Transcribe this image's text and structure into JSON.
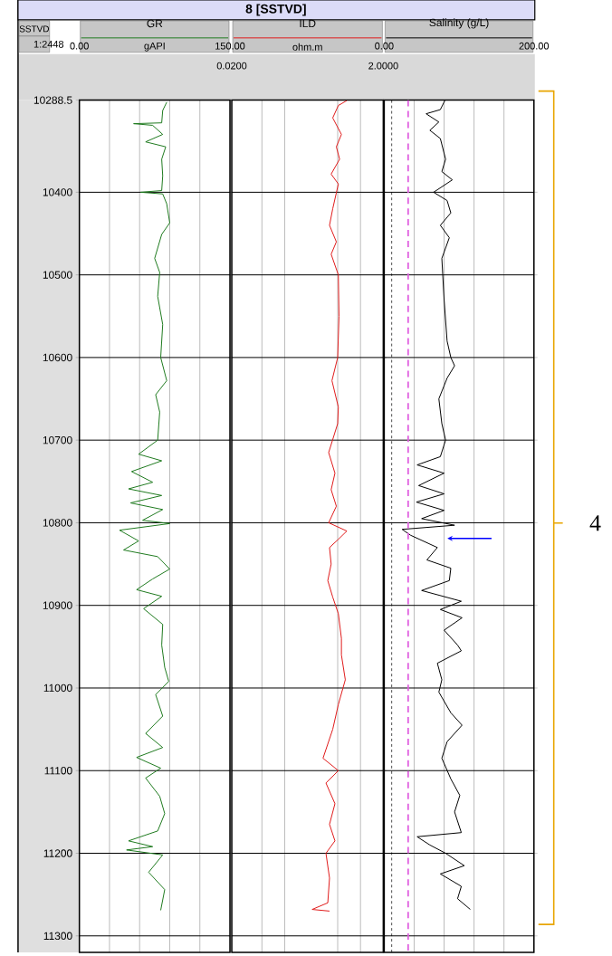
{
  "chart_data": [
    {
      "type": "line",
      "title": "GR",
      "xlabel": "gAPI",
      "ylabel": "SSTVD",
      "annotations": [
        "8 [SSTVD]",
        "1:2448"
      ],
      "xlim": [
        0,
        150
      ],
      "xticks": [
        {
          "value": 0,
          "label": "0.00"
        },
        {
          "value": 30,
          "label": null
        },
        {
          "value": 60,
          "label": null
        },
        {
          "value": 90,
          "label": null
        },
        {
          "value": 120,
          "label": null
        },
        {
          "value": 150,
          "label": "150.00"
        }
      ],
      "ylim": [
        11320,
        10288.5
      ],
      "yticks": [
        {
          "value": 10288.5,
          "label": "10288.5"
        },
        10400,
        10500,
        10600,
        10700,
        10800,
        10900,
        11000,
        11100,
        11200,
        11300
      ],
      "grid": true,
      "marker": "none",
      "line_style": "solid",
      "series": [
        {
          "color": "#1f7a1f",
          "x": [
            87,
            83,
            82,
            54,
            73,
            83,
            66,
            86,
            82,
            83,
            82,
            61,
            83,
            87,
            90,
            82,
            75,
            80,
            78,
            83,
            81,
            87,
            76,
            80,
            78,
            59,
            82,
            52,
            73,
            49,
            82,
            51,
            83,
            63,
            90,
            40,
            59,
            44,
            78,
            90,
            73,
            57,
            82,
            64,
            83,
            82,
            85,
            89,
            76,
            83,
            66,
            83,
            57,
            81,
            66,
            80,
            85,
            78,
            49,
            73,
            47,
            83,
            69,
            85,
            81
          ],
          "values": [
            10291,
            10301,
            10316,
            10317,
            10319,
            10330,
            10339,
            10345,
            10360,
            10380,
            10398,
            10400,
            10402,
            10414,
            10437,
            10451,
            10480,
            10497,
            10526,
            10560,
            10600,
            10628,
            10645,
            10666,
            10700,
            10717,
            10725,
            10738,
            10751,
            10759,
            10767,
            10776,
            10784,
            10797,
            10801,
            10809,
            10822,
            10833,
            10841,
            10856,
            10868,
            10881,
            10889,
            10904,
            10923,
            10948,
            10975,
            10992,
            11008,
            11034,
            11055,
            11072,
            11084,
            11097,
            11109,
            11131,
            11152,
            11173,
            11185,
            11192,
            11196,
            11202,
            11223,
            11244,
            11269
          ]
        }
      ]
    },
    {
      "type": "line",
      "title": "ILD",
      "xlabel": "ohm.m",
      "log": "x",
      "xlim": [
        0.02,
        2
      ],
      "xticks": [
        {
          "value": 0.02,
          "label": "0.0200"
        },
        {
          "value": 0.05,
          "label": null
        },
        {
          "value": 0.1,
          "label": null
        },
        {
          "value": 0.5,
          "label": null
        },
        {
          "value": 1,
          "label": null
        },
        {
          "value": 2,
          "label": "2.0000"
        }
      ],
      "ylim": [
        11320,
        10288.5
      ],
      "yticks": [
        10400,
        10500,
        10600,
        10700,
        10800,
        10900,
        11000,
        11100,
        11200,
        11300
      ],
      "tick_labels": "x",
      "grid": true,
      "marker": "none",
      "line_style": "solid",
      "series": [
        {
          "color": "#e01b1b",
          "x": [
            0.66,
            0.51,
            0.43,
            0.56,
            0.48,
            0.53,
            0.41,
            0.51,
            0.43,
            0.39,
            0.48,
            0.41,
            0.51,
            0.52,
            0.5,
            0.42,
            0.51,
            0.5,
            0.38,
            0.46,
            0.41,
            0.48,
            0.38,
            0.66,
            0.51,
            0.39,
            0.41,
            0.37,
            0.43,
            0.51,
            0.56,
            0.56,
            0.63,
            0.51,
            0.43,
            0.32,
            0.51,
            0.35,
            0.46,
            0.39,
            0.46,
            0.35,
            0.39,
            0.37,
            0.23,
            0.39
          ],
          "values": [
            10289,
            10295,
            10310,
            10330,
            10345,
            10360,
            10378,
            10390,
            10420,
            10440,
            10460,
            10475,
            10500,
            10550,
            10600,
            10628,
            10660,
            10680,
            10715,
            10740,
            10760,
            10780,
            10800,
            10810,
            10820,
            10830,
            10850,
            10870,
            10890,
            10910,
            10940,
            10960,
            10990,
            11020,
            11050,
            11085,
            11100,
            11115,
            11140,
            11165,
            11185,
            11200,
            11230,
            11260,
            11268,
            11270
          ]
        }
      ]
    },
    {
      "type": "line",
      "title": "Salinity (g/L)",
      "annotations": [
        "4"
      ],
      "xlim": [
        0,
        200
      ],
      "xticks": [
        {
          "value": 0,
          "label": "0.00"
        },
        {
          "value": 40,
          "label": null
        },
        {
          "value": 80,
          "label": null
        },
        {
          "value": 120,
          "label": null
        },
        {
          "value": 160,
          "label": null
        },
        {
          "value": 200,
          "label": "200.00"
        }
      ],
      "ylim": [
        11320,
        10288.5
      ],
      "yticks": [
        10400,
        10500,
        10600,
        10700,
        10800,
        10900,
        11000,
        11100,
        11200,
        11300
      ],
      "tick_labels": "x",
      "grid": true,
      "marker": "none",
      "line_style": "solid",
      "ref_lines": [
        {
          "axis": "x",
          "value": 10,
          "color": "#000000",
          "line_style": "dashed"
        },
        {
          "axis": "x",
          "value": 32,
          "color": "#e060e0",
          "line_style": "dashed"
        }
      ],
      "series": [
        {
          "color": "#000000",
          "x": [
            81,
            75,
            56,
            73,
            61,
            75,
            82,
            77,
            91,
            66,
            84,
            89,
            75,
            87,
            77,
            80,
            84,
            89,
            94,
            84,
            73,
            77,
            82,
            75,
            44,
            80,
            46,
            80,
            43,
            80,
            50,
            94,
            24,
            35,
            71,
            57,
            89,
            87,
            50,
            103,
            75,
            104,
            80,
            98,
            103,
            71,
            77,
            73,
            89,
            104,
            84,
            77,
            89,
            101,
            94,
            103,
            44,
            61,
            82,
            107,
            75,
            103,
            98,
            115
          ],
          "values": [
            10289,
            10300,
            10305,
            10315,
            10325,
            10335,
            10360,
            10375,
            10385,
            10400,
            10410,
            10425,
            10440,
            10455,
            10480,
            10530,
            10580,
            10600,
            10610,
            10625,
            10650,
            10680,
            10700,
            10720,
            10730,
            10740,
            10755,
            10765,
            10775,
            10785,
            10795,
            10803,
            10808,
            10815,
            10830,
            10845,
            10855,
            10870,
            10882,
            10895,
            10905,
            10915,
            10930,
            10948,
            10955,
            10970,
            10990,
            11005,
            11030,
            11045,
            11065,
            11085,
            11110,
            11130,
            11150,
            11175,
            11180,
            11190,
            11200,
            11215,
            11225,
            11240,
            11255,
            11268
          ]
        }
      ]
    }
  ]
}
